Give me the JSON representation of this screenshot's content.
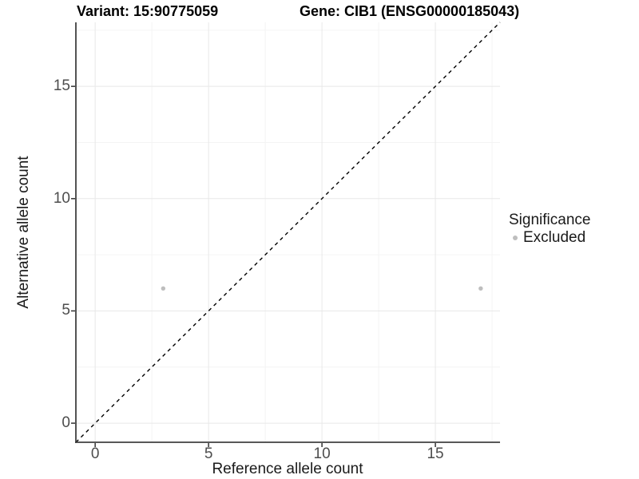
{
  "header": {
    "title_variant": "Variant: 15:90775059",
    "title_gene": "Gene: CIB1 (ENSG00000185043)"
  },
  "legend": {
    "title": "Significance",
    "items": [
      {
        "label": "Excluded",
        "color": "#bebebe"
      }
    ]
  },
  "chart_data": {
    "type": "scatter",
    "title": "Variant: 15:90775059   Gene: CIB1 (ENSG00000185043)",
    "xlabel": "Reference allele count",
    "ylabel": "Alternative allele count",
    "xlim": [
      -0.85,
      17.85
    ],
    "ylim": [
      -0.85,
      17.85
    ],
    "x_ticks": [
      0,
      5,
      10,
      15
    ],
    "y_ticks": [
      0,
      5,
      10,
      15
    ],
    "x_minor_ticks": [
      2.5,
      7.5,
      12.5,
      17.5
    ],
    "y_minor_ticks": [
      2.5,
      7.5,
      12.5,
      17.5
    ],
    "grid": true,
    "legend_position": "right",
    "series": [
      {
        "name": "Excluded",
        "color": "#bebebe",
        "points": [
          {
            "x": 3,
            "y": 6
          },
          {
            "x": 17,
            "y": 6
          }
        ]
      }
    ],
    "reference_line": {
      "type": "identity y=x",
      "style": "dashed",
      "color": "#000000",
      "from": {
        "x": -0.85,
        "y": -0.85
      },
      "to": {
        "x": 17.85,
        "y": 17.85
      }
    }
  },
  "style": {
    "grid_major": "#e8e8e8",
    "grid_minor": "#f4f4f4",
    "axis_line": "#404040",
    "tick_color": "#333333",
    "point_color": "#bebebe",
    "dash_color": "#000000"
  }
}
